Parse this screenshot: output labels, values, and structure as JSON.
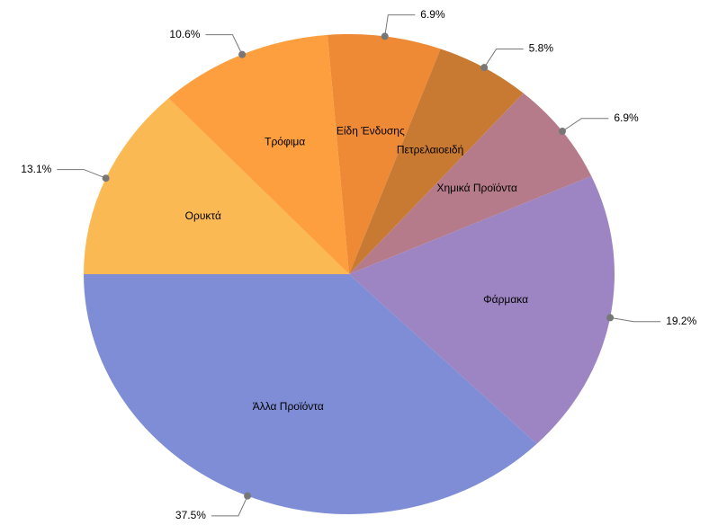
{
  "chart_data": {
    "type": "pie",
    "categories": [
      "Ορυκτά",
      "Τρόφιμα",
      "Είδη Ένδυσης",
      "Πετρελαιοειδή",
      "Χημικά Προϊόντα",
      "Φάρμακα",
      "Άλλα Προϊόντα"
    ],
    "values": [
      13.1,
      10.6,
      6.9,
      5.8,
      6.9,
      19.2,
      37.5
    ],
    "value_labels": [
      "13.1%",
      "10.6%",
      "6.9%",
      "5.8%",
      "6.9%",
      "19.2%",
      "37.5%"
    ],
    "colors": [
      "#fbb954",
      "#fd9f3e",
      "#ee8a35",
      "#c97a32",
      "#b57b8a",
      "#9d84c2",
      "#7f8dd6"
    ]
  }
}
